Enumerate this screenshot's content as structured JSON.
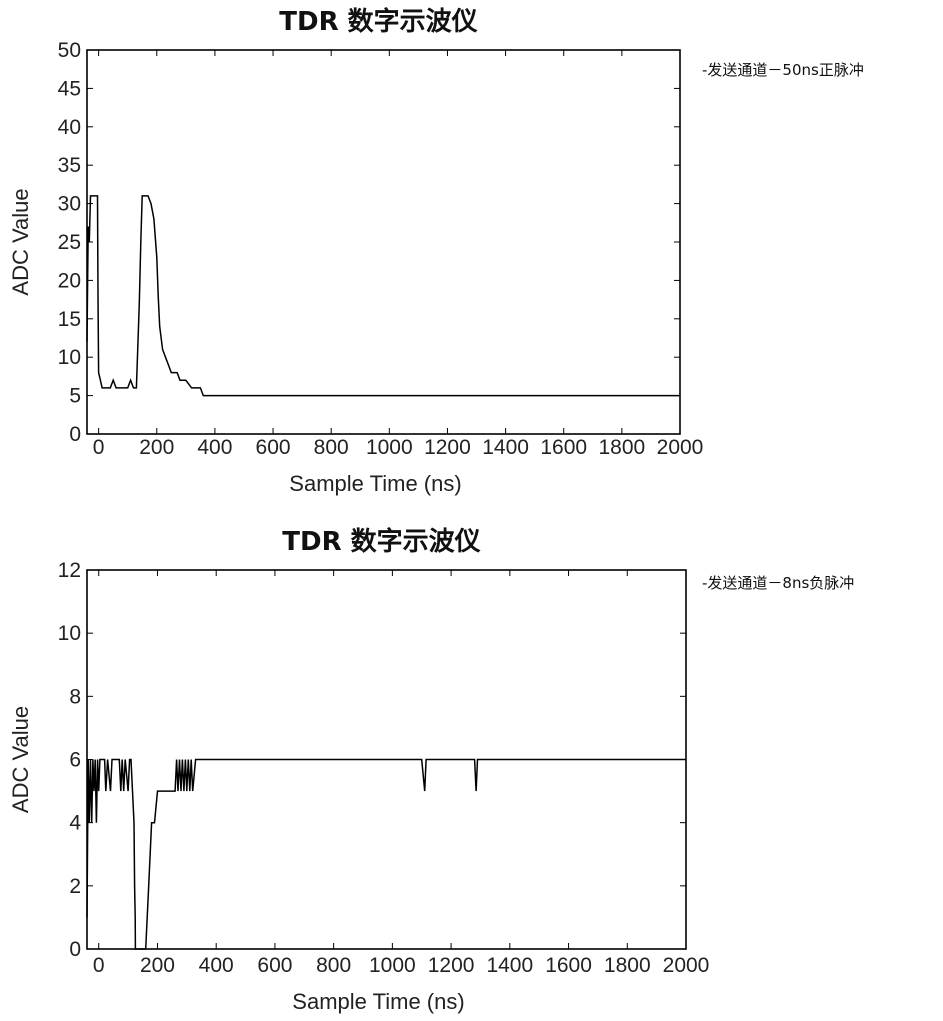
{
  "chart_data": [
    {
      "type": "line",
      "title": "TDR 数字示波仪",
      "xlabel": "Sample Time (ns)",
      "ylabel": "ADC Value",
      "xlim": [
        -40,
        2000
      ],
      "ylim": [
        0,
        50
      ],
      "x_ticks": [
        "0",
        "200",
        "400",
        "600",
        "800",
        "1000",
        "1200",
        "1400",
        "1600",
        "1800",
        "2000"
      ],
      "y_ticks": [
        "0",
        "5",
        "10",
        "15",
        "20",
        "25",
        "30",
        "35",
        "40",
        "45",
        "50"
      ],
      "legend": "-发送通道－50ns正脉冲",
      "legend_position": "outside-right",
      "grid": false,
      "series": [
        {
          "name": "-发送通道－50ns正脉冲",
          "x": [
            -40,
            -36,
            -32,
            -28,
            -24,
            -20,
            -12,
            -4,
            -2,
            0,
            6,
            12,
            20,
            40,
            50,
            60,
            80,
            100,
            110,
            120,
            130,
            140,
            145,
            150,
            160,
            170,
            180,
            190,
            200,
            205,
            210,
            220,
            230,
            240,
            250,
            260,
            270,
            280,
            300,
            320,
            340,
            350,
            360,
            380,
            400,
            600,
            800,
            1000,
            1200,
            1400,
            1600,
            1800,
            2000
          ],
          "y": [
            12,
            27,
            25,
            31,
            31,
            31,
            31,
            31,
            18,
            8,
            7,
            6,
            6,
            6,
            7,
            6,
            6,
            6,
            7,
            6,
            6,
            17,
            25,
            31,
            31,
            31,
            30,
            28,
            23,
            18,
            14,
            11,
            10,
            9,
            8,
            8,
            8,
            7,
            7,
            6,
            6,
            6,
            5,
            5,
            5,
            5,
            5,
            5,
            5,
            5,
            5,
            5,
            5
          ],
          "color": "#000000"
        }
      ]
    },
    {
      "type": "line",
      "title": "TDR 数字示波仪",
      "xlabel": "Sample Time (ns)",
      "ylabel": "ADC Value",
      "xlim": [
        -40,
        2000
      ],
      "ylim": [
        0,
        12
      ],
      "x_ticks": [
        "0",
        "200",
        "400",
        "600",
        "800",
        "1000",
        "1200",
        "1400",
        "1600",
        "1800",
        "2000"
      ],
      "y_ticks": [
        "0",
        "2",
        "4",
        "6",
        "8",
        "10",
        "12"
      ],
      "legend": "-发送通道－8ns负脉冲",
      "legend_position": "outside-right",
      "grid": false,
      "series": [
        {
          "name": "-发送通道－8ns负脉冲",
          "x": [
            -40,
            -36,
            -32,
            -28,
            -24,
            -20,
            -16,
            -12,
            -8,
            -4,
            0,
            4,
            8,
            12,
            16,
            20,
            24,
            30,
            40,
            45,
            50,
            55,
            60,
            70,
            75,
            80,
            85,
            90,
            100,
            105,
            110,
            115,
            120,
            122,
            124,
            125,
            128,
            130,
            132,
            135,
            140,
            150,
            160,
            170,
            180,
            190,
            200,
            210,
            220,
            230,
            240,
            250,
            260,
            265,
            270,
            275,
            280,
            285,
            290,
            295,
            300,
            305,
            310,
            315,
            320,
            330,
            340,
            350,
            360,
            380,
            400,
            600,
            800,
            1000,
            1050,
            1100,
            1110,
            1115,
            1120,
            1130,
            1200,
            1280,
            1285,
            1290,
            1300,
            1400,
            1600,
            1800,
            2000
          ],
          "y": [
            1,
            6,
            4,
            6,
            4,
            6,
            5,
            6,
            4,
            6,
            5,
            6,
            6,
            6,
            6,
            6,
            5,
            6,
            5,
            6,
            6,
            6,
            6,
            6,
            5,
            6,
            5,
            6,
            5,
            6,
            6,
            5,
            4,
            2,
            1,
            0,
            0,
            0,
            0,
            0,
            0,
            0,
            0,
            2,
            4,
            4,
            5,
            5,
            5,
            5,
            5,
            5,
            5,
            6,
            5,
            6,
            5,
            6,
            5,
            6,
            5,
            6,
            5,
            6,
            5,
            6,
            6,
            6,
            6,
            6,
            6,
            6,
            6,
            6,
            6,
            6,
            5,
            6,
            6,
            6,
            6,
            6,
            5,
            6,
            6,
            6,
            6,
            6,
            6
          ],
          "color": "#000000"
        }
      ]
    }
  ]
}
